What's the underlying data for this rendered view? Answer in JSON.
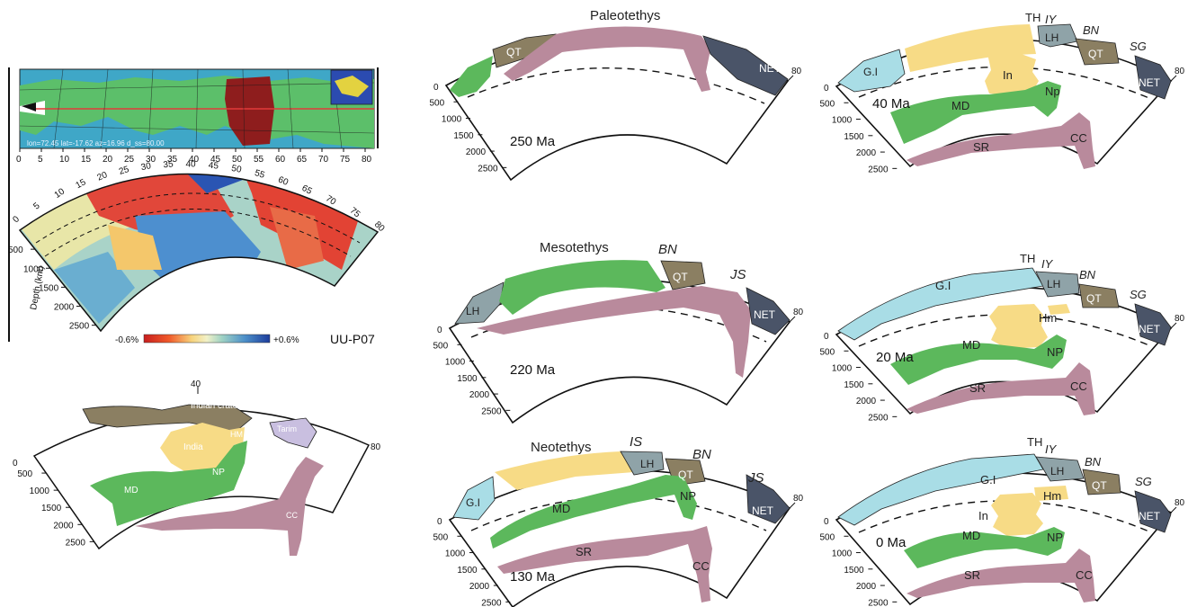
{
  "tomography": {
    "map_numbers": [
      "0",
      "5",
      "10",
      "15",
      "20",
      "25",
      "30",
      "35",
      "40",
      "45",
      "50",
      "55",
      "60",
      "65",
      "70",
      "75",
      "80"
    ],
    "arc_numbers": [
      "0",
      "5",
      "10",
      "15",
      "20",
      "25",
      "30",
      "35",
      "40",
      "45",
      "50",
      "55",
      "60",
      "65",
      "70",
      "75",
      "80"
    ],
    "depth_ticks": [
      "500",
      "1000",
      "1500",
      "2000",
      "2500"
    ],
    "depth_label": "Depth (km)",
    "scale_min": "-0.6%",
    "scale_max": "+0.6%",
    "model_name": "UU-P07",
    "map_caption": "lon=72.45 lat=-17.62 az=16.96 d_ss=80.00"
  },
  "interpretation": {
    "arc_top": "40",
    "arc_end": "80",
    "arc_start": "0",
    "depth_ticks": [
      "500",
      "1000",
      "1500",
      "2000",
      "2500"
    ],
    "labels": {
      "craton": "Indian craton",
      "tarim": "Tarim",
      "india": "India",
      "hm": "HM",
      "np": "NP",
      "md": "MD",
      "cc": "CC"
    }
  },
  "panels": [
    {
      "id": "p250",
      "age": "250 Ma",
      "title": "Paleotethys",
      "labels": {
        "qt": "QT",
        "net": "NET"
      }
    },
    {
      "id": "p220",
      "age": "220 Ma",
      "title": "Mesotethys",
      "labels": {
        "lh": "LH",
        "qt": "QT",
        "net": "NET",
        "bn": "BN",
        "js": "JS"
      }
    },
    {
      "id": "p130",
      "age": "130 Ma",
      "title": "Neotethys",
      "labels": {
        "gi": "G.I",
        "lh": "LH",
        "qt": "QT",
        "net": "NET",
        "md": "MD",
        "np": "NP",
        "sr": "SR",
        "cc": "CC",
        "is": "IS",
        "bn": "BN",
        "js": "JS"
      }
    },
    {
      "id": "p40",
      "age": "40 Ma",
      "labels": {
        "gi": "G.I",
        "lh": "LH",
        "qt": "QT",
        "net": "NET",
        "in": "In",
        "np": "Np",
        "md": "MD",
        "sr": "SR",
        "cc": "CC",
        "th": "TH",
        "iy": "IY",
        "bn": "BN",
        "sg": "SG"
      }
    },
    {
      "id": "p20",
      "age": "20 Ma",
      "labels": {
        "gi": "G.I",
        "lh": "LH",
        "qt": "QT",
        "net": "NET",
        "hm": "Hm",
        "np": "NP",
        "md": "MD",
        "sr": "SR",
        "cc": "CC",
        "th": "TH",
        "iy": "IY",
        "bn": "BN",
        "sg": "SG"
      }
    },
    {
      "id": "p0",
      "age": "0 Ma",
      "labels": {
        "gi": "G.I",
        "lh": "LH",
        "qt": "QT",
        "net": "NET",
        "in": "In",
        "hm": "Hm",
        "np": "NP",
        "md": "MD",
        "sr": "SR",
        "cc": "CC",
        "th": "TH",
        "iy": "IY",
        "bn": "BN",
        "sg": "SG"
      }
    }
  ],
  "panel_axis": {
    "start": "0",
    "end": "80",
    "depth_ticks": [
      "500",
      "1000",
      "1500",
      "2000",
      "2500"
    ]
  },
  "colors": {
    "green": "#5cb85c",
    "pink": "#b98a9c",
    "yellow": "#f7db86",
    "lightblue": "#a9dde6",
    "brown": "#8b7f62",
    "navy": "#4a5468",
    "slate": "#8fa3a8",
    "lavender": "#c9bfe0"
  }
}
